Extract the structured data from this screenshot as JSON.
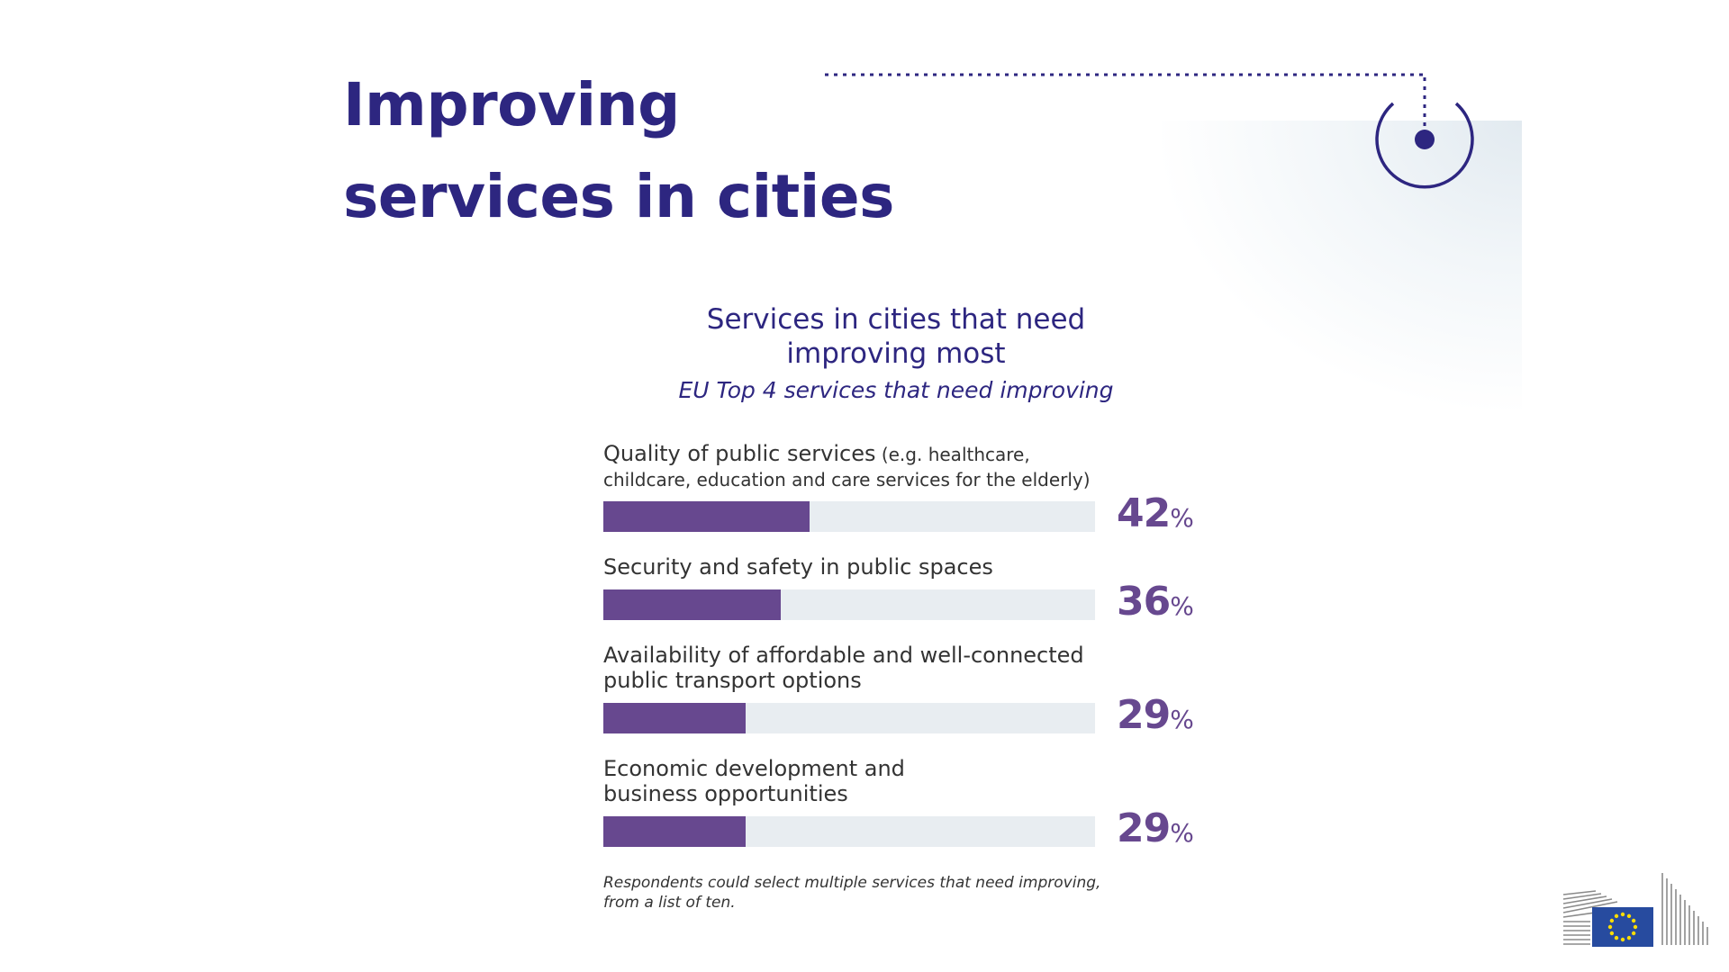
{
  "slide": {
    "title_line1": "Improving",
    "title_line2": "services in cities"
  },
  "chart_data": {
    "type": "bar",
    "orientation": "horizontal",
    "title_line1": "Services in cities that need",
    "title_line2": "improving most",
    "subtitle": "EU Top 4 services that need improving",
    "categories": [
      "Quality of public services (e.g. healthcare, childcare, education and care services for the elderly)",
      "Security and safety in public spaces",
      "Availability of affordable and well-connected public transport options",
      "Economic development and business opportunities"
    ],
    "label_lines": [
      {
        "line1": "Quality of public services",
        "note": " (e.g. healthcare,",
        "line2": "childcare, education and care services for the elderly)"
      },
      {
        "line1": "Security and safety in public spaces",
        "note": "",
        "line2": ""
      },
      {
        "line1": "Availability of affordable and well-connected",
        "note": "",
        "line2": "public transport options"
      },
      {
        "line1": "Economic development and",
        "note": "",
        "line2": "business opportunities"
      }
    ],
    "values": [
      42,
      36,
      29,
      29
    ],
    "unit": "%",
    "xlim": [
      0,
      100
    ],
    "bar_color": "#67488f",
    "track_color": "#e8edf1",
    "value_color": "#67488f",
    "footnote_line1": "Respondents could select multiple services that need improving,",
    "footnote_line2": "from a list of ten."
  },
  "colors": {
    "title": "#2d2680",
    "accent": "#2d2680",
    "eu_blue": "#274b9f",
    "eu_yellow": "#ffdd00"
  },
  "icons": [
    "dotted-connector-icon",
    "target-circle-icon",
    "european-commission-logo"
  ]
}
